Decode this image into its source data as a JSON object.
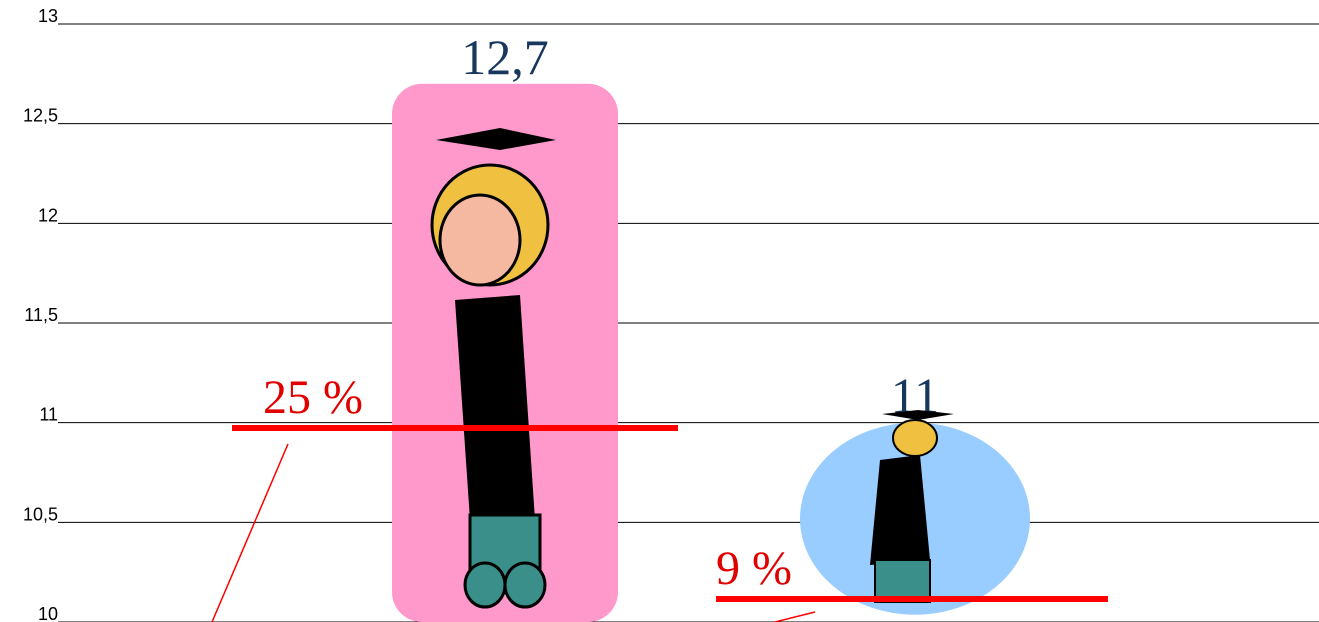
{
  "chart_data": {
    "type": "bar",
    "categories": [
      null,
      null
    ],
    "values": [
      12.7,
      11
    ],
    "value_labels": [
      "12,7",
      "11"
    ],
    "colors": [
      "#ff99cc",
      "#99ccff"
    ],
    "ylim": [
      10,
      13
    ],
    "yticks": [
      10,
      {
        "value": 10.5,
        "label": "10,5"
      },
      11,
      {
        "value": 11.5,
        "label": "11,5"
      },
      12,
      {
        "value": 12.5,
        "label": "12,5"
      },
      13
    ],
    "grid": true,
    "annotations": [
      "25 %",
      "9 %"
    ]
  }
}
